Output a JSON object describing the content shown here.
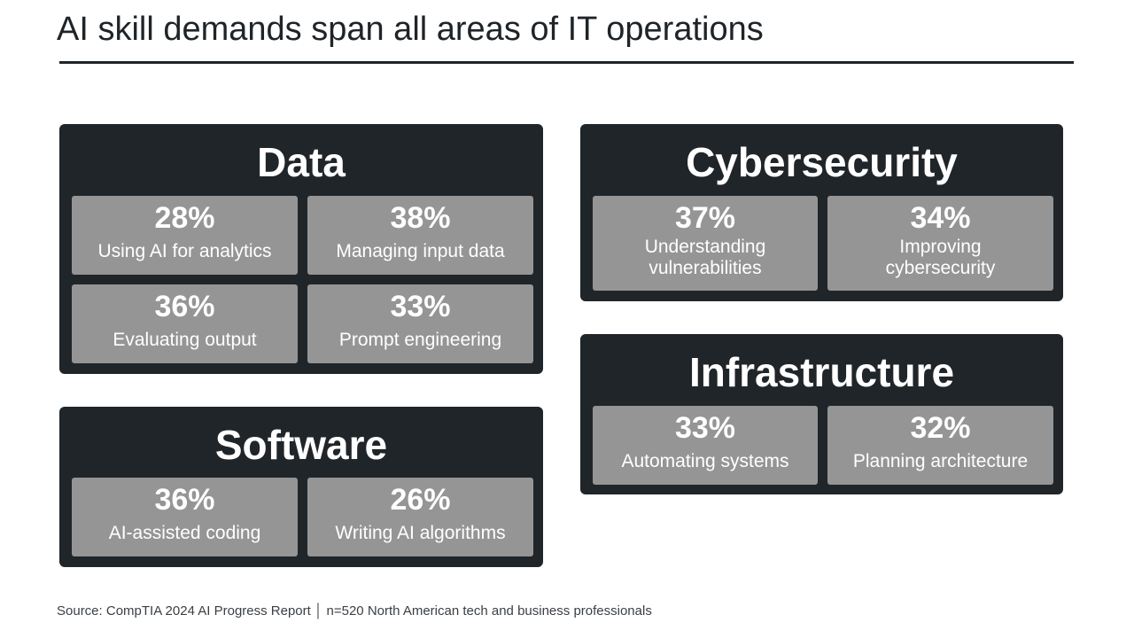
{
  "slide": {
    "title": "AI skill demands span all areas of IT operations",
    "source": "Source: CompTIA 2024 AI Progress Report │ n=520 North American tech and business professionals"
  },
  "panels": {
    "data": {
      "title": "Data",
      "items": [
        {
          "value": "28%",
          "label": "Using AI for analytics"
        },
        {
          "value": "38%",
          "label": "Managing input data"
        },
        {
          "value": "36%",
          "label": "Evaluating output"
        },
        {
          "value": "33%",
          "label": "Prompt engineering"
        }
      ]
    },
    "cybersecurity": {
      "title": "Cybersecurity",
      "items": [
        {
          "value": "37%",
          "label_lines": [
            "Understanding",
            "vulnerabilities"
          ]
        },
        {
          "value": "34%",
          "label_lines": [
            "Improving",
            "cybersecurity"
          ]
        }
      ]
    },
    "software": {
      "title": "Software",
      "items": [
        {
          "value": "36%",
          "label": "AI-assisted coding"
        },
        {
          "value": "26%",
          "label": "Writing AI algorithms"
        }
      ]
    },
    "infrastructure": {
      "title": "Infrastructure",
      "items": [
        {
          "value": "33%",
          "label": "Automating systems"
        },
        {
          "value": "32%",
          "label": "Planning architecture"
        }
      ]
    }
  },
  "colors": {
    "panel_background": "#202529",
    "tile_background": "#959595",
    "text_on_panel": "#ffffff"
  }
}
